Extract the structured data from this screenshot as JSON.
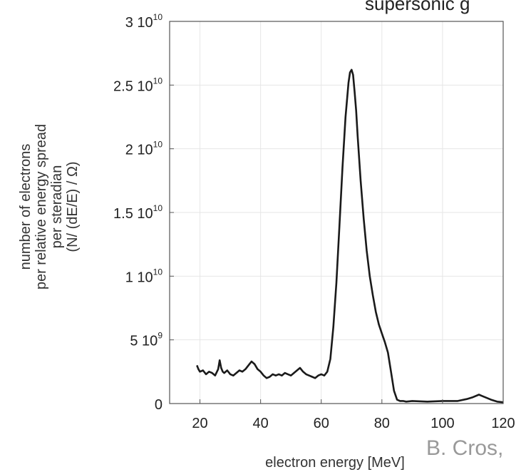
{
  "chart_data": {
    "type": "line",
    "title": "supersonic g",
    "xlabel": "electron energy [MeV]",
    "ylabel": [
      "number of electrons",
      "per relative energy spread",
      "per steradian",
      "(N/ (dE/E) / Ω)"
    ],
    "credit": "B. Cros,",
    "xlim": [
      10,
      120
    ],
    "ylim": [
      0,
      30000000000
    ],
    "grid": true,
    "x_ticks": [
      {
        "value": 20,
        "label": "20"
      },
      {
        "value": 40,
        "label": "40"
      },
      {
        "value": 60,
        "label": "60"
      },
      {
        "value": 80,
        "label": "80"
      },
      {
        "value": 100,
        "label": "100"
      },
      {
        "value": 120,
        "label": "120"
      }
    ],
    "y_ticks": [
      {
        "value": 0,
        "mant": "0",
        "exp": ""
      },
      {
        "value": 5000000000,
        "mant": "5 10",
        "exp": "9"
      },
      {
        "value": 10000000000,
        "mant": "1 10",
        "exp": "10"
      },
      {
        "value": 15000000000,
        "mant": "1.5 10",
        "exp": "10"
      },
      {
        "value": 20000000000,
        "mant": "2 10",
        "exp": "10"
      },
      {
        "value": 25000000000,
        "mant": "2.5 10",
        "exp": "10"
      },
      {
        "value": 30000000000,
        "mant": "3 10",
        "exp": "10"
      }
    ],
    "series": [
      {
        "x": [
          19,
          19.5,
          20,
          21,
          22,
          23,
          24,
          25,
          26,
          26.5,
          27,
          27.5,
          28,
          29,
          30,
          31,
          32,
          33,
          34,
          35,
          36,
          37,
          38,
          39,
          40,
          41,
          42,
          43,
          44,
          45,
          46,
          47,
          48,
          49,
          50,
          51,
          52,
          53,
          54,
          55,
          56,
          57,
          58,
          59,
          60,
          61,
          62,
          63,
          64,
          65,
          66,
          67,
          68,
          69,
          69.5,
          70,
          70.5,
          71,
          71.5,
          72,
          73,
          74,
          75,
          76,
          77,
          78,
          79,
          80,
          81,
          82,
          83,
          84,
          85,
          86,
          87,
          88,
          90,
          95,
          100,
          105,
          108,
          110,
          112,
          113,
          114,
          116,
          118,
          120
        ],
        "y": [
          3000000000,
          2700000000,
          2500000000,
          2600000000,
          2300000000,
          2500000000,
          2400000000,
          2200000000,
          2700000000,
          3400000000,
          2800000000,
          2500000000,
          2400000000,
          2600000000,
          2300000000,
          2200000000,
          2400000000,
          2600000000,
          2500000000,
          2700000000,
          3000000000,
          3300000000,
          3100000000,
          2700000000,
          2500000000,
          2200000000,
          2000000000,
          2100000000,
          2300000000,
          2200000000,
          2300000000,
          2200000000,
          2400000000,
          2300000000,
          2200000000,
          2400000000,
          2600000000,
          2800000000,
          2500000000,
          2300000000,
          2200000000,
          2100000000,
          2000000000,
          2200000000,
          2300000000,
          2200000000,
          2500000000,
          3500000000,
          6000000000,
          9500000000,
          14000000000,
          18500000000,
          22500000000,
          25200000000,
          26000000000,
          26200000000,
          25800000000,
          24500000000,
          23000000000,
          21000000000,
          17500000000,
          14500000000,
          12000000000,
          10000000000,
          8500000000,
          7200000000,
          6200000000,
          5500000000,
          4800000000,
          4000000000,
          2500000000,
          1000000000,
          300000000,
          200000000,
          200000000,
          150000000,
          200000000,
          150000000,
          200000000,
          200000000,
          350000000,
          500000000,
          700000000,
          600000000,
          500000000,
          300000000,
          150000000,
          100000000
        ]
      }
    ]
  }
}
